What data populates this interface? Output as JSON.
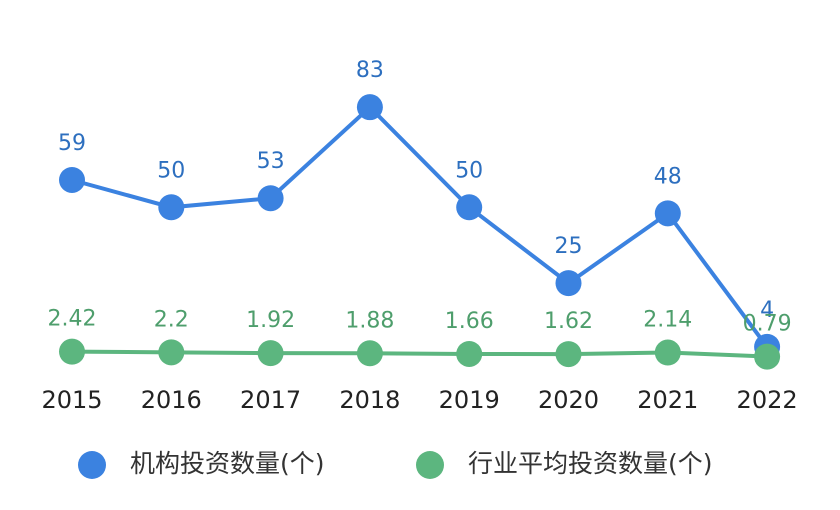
{
  "chart_data": {
    "type": "line",
    "categories": [
      "2015",
      "2016",
      "2017",
      "2018",
      "2019",
      "2020",
      "2021",
      "2022"
    ],
    "series": [
      {
        "name": "机构投资数量(个)",
        "color": "#3b82e0",
        "values": [
          59,
          50,
          53,
          83,
          50,
          25,
          48,
          4
        ]
      },
      {
        "name": "行业平均投资数量(个)",
        "color": "#5cb67f",
        "values": [
          2.42,
          2.2,
          1.92,
          1.88,
          1.66,
          1.62,
          2.14,
          0.79
        ]
      }
    ],
    "ylim": [
      0,
      100
    ],
    "grid": false,
    "legend": "bottom"
  }
}
